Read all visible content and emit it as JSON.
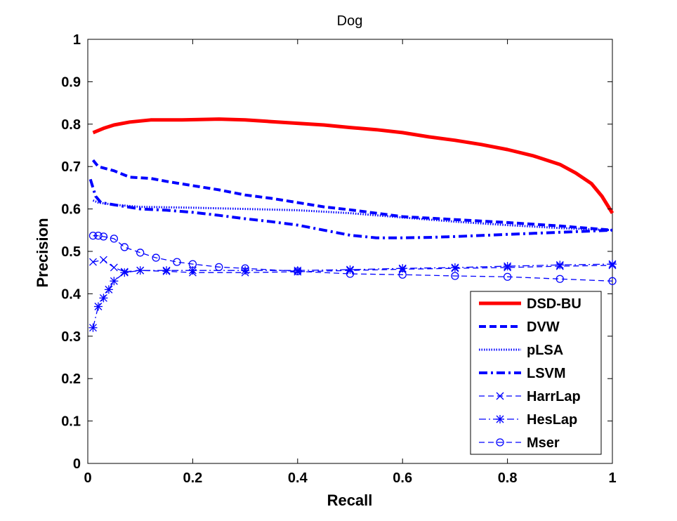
{
  "chart_data": {
    "type": "line",
    "title": "Dog",
    "xlabel": "Recall",
    "ylabel": "Precision",
    "xlim": [
      0,
      1
    ],
    "ylim": [
      0,
      1
    ],
    "x_ticks": [
      "0",
      "0.2",
      "0.4",
      "0.6",
      "0.8",
      "1"
    ],
    "y_ticks": [
      "0",
      "0.1",
      "0.2",
      "0.3",
      "0.4",
      "0.5",
      "0.6",
      "0.7",
      "0.8",
      "0.9",
      "1"
    ],
    "grid": false,
    "legend_position": "bottom-right",
    "series": [
      {
        "name": "DSD-BU",
        "color": "#ff0000",
        "style": "solid-thick",
        "marker": "none",
        "x": [
          0.01,
          0.03,
          0.05,
          0.08,
          0.12,
          0.18,
          0.25,
          0.3,
          0.35,
          0.4,
          0.45,
          0.5,
          0.55,
          0.6,
          0.65,
          0.7,
          0.75,
          0.8,
          0.85,
          0.9,
          0.93,
          0.96,
          0.98,
          1.0
        ],
        "y": [
          0.78,
          0.79,
          0.798,
          0.805,
          0.81,
          0.81,
          0.812,
          0.81,
          0.806,
          0.802,
          0.798,
          0.792,
          0.787,
          0.78,
          0.77,
          0.762,
          0.752,
          0.74,
          0.725,
          0.705,
          0.685,
          0.66,
          0.63,
          0.59
        ]
      },
      {
        "name": "DVW",
        "color": "#0000ff",
        "style": "dashed-thick",
        "marker": "none",
        "x": [
          0.01,
          0.02,
          0.05,
          0.08,
          0.12,
          0.15,
          0.2,
          0.25,
          0.3,
          0.35,
          0.4,
          0.45,
          0.5,
          0.55,
          0.6,
          0.7,
          0.8,
          0.9,
          1.0
        ],
        "y": [
          0.715,
          0.7,
          0.69,
          0.675,
          0.672,
          0.665,
          0.655,
          0.645,
          0.633,
          0.625,
          0.615,
          0.605,
          0.598,
          0.59,
          0.582,
          0.575,
          0.568,
          0.56,
          0.55
        ]
      },
      {
        "name": "pLSA",
        "color": "#0000ff",
        "style": "dotted",
        "marker": "none",
        "x": [
          0.01,
          0.02,
          0.05,
          0.1,
          0.2,
          0.3,
          0.4,
          0.5,
          0.6,
          0.7,
          0.8,
          0.9,
          1.0
        ],
        "y": [
          0.62,
          0.615,
          0.61,
          0.605,
          0.603,
          0.6,
          0.597,
          0.59,
          0.58,
          0.57,
          0.562,
          0.555,
          0.55
        ]
      },
      {
        "name": "LSVM",
        "color": "#0000ff",
        "style": "dashdot-thick",
        "marker": "none",
        "x": [
          0.005,
          0.015,
          0.025,
          0.05,
          0.1,
          0.15,
          0.2,
          0.25,
          0.3,
          0.35,
          0.4,
          0.45,
          0.5,
          0.55,
          0.6,
          0.65,
          0.7,
          0.8,
          0.9,
          1.0
        ],
        "y": [
          0.67,
          0.63,
          0.615,
          0.61,
          0.6,
          0.597,
          0.592,
          0.585,
          0.577,
          0.57,
          0.562,
          0.55,
          0.538,
          0.532,
          0.532,
          0.533,
          0.535,
          0.54,
          0.545,
          0.55
        ]
      },
      {
        "name": "HarrLap",
        "color": "#0000ff",
        "style": "dashed",
        "marker": "x",
        "x": [
          0.01,
          0.03,
          0.05,
          0.07,
          0.1,
          0.15,
          0.2,
          0.3,
          0.4,
          0.5,
          0.6,
          0.7,
          0.8,
          0.9,
          1.0
        ],
        "y": [
          0.475,
          0.48,
          0.462,
          0.452,
          0.455,
          0.453,
          0.45,
          0.45,
          0.452,
          0.455,
          0.458,
          0.46,
          0.462,
          0.465,
          0.467
        ]
      },
      {
        "name": "HesLap",
        "color": "#0000ff",
        "style": "dashdot",
        "marker": "*",
        "x": [
          0.01,
          0.02,
          0.03,
          0.04,
          0.05,
          0.07,
          0.1,
          0.15,
          0.2,
          0.3,
          0.4,
          0.5,
          0.6,
          0.7,
          0.8,
          0.9,
          1.0
        ],
        "y": [
          0.32,
          0.37,
          0.39,
          0.41,
          0.43,
          0.45,
          0.455,
          0.455,
          0.455,
          0.455,
          0.455,
          0.457,
          0.46,
          0.462,
          0.465,
          0.468,
          0.47
        ]
      },
      {
        "name": "Mser",
        "color": "#0000ff",
        "style": "dashed",
        "marker": "o",
        "x": [
          0.01,
          0.02,
          0.03,
          0.05,
          0.07,
          0.1,
          0.13,
          0.17,
          0.2,
          0.25,
          0.3,
          0.4,
          0.5,
          0.6,
          0.7,
          0.8,
          0.9,
          1.0
        ],
        "y": [
          0.537,
          0.537,
          0.535,
          0.53,
          0.51,
          0.497,
          0.485,
          0.475,
          0.47,
          0.463,
          0.46,
          0.453,
          0.447,
          0.445,
          0.442,
          0.44,
          0.435,
          0.43
        ]
      }
    ]
  }
}
